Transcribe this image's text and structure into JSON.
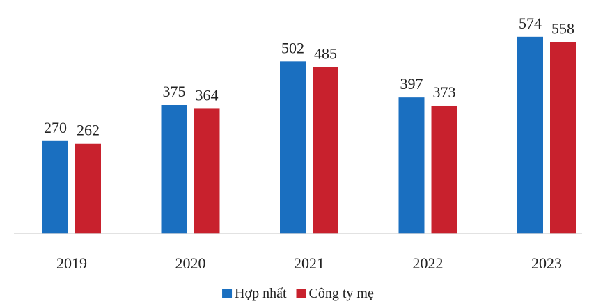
{
  "chart_data": {
    "type": "bar",
    "categories": [
      "2019",
      "2020",
      "2021",
      "2022",
      "2023"
    ],
    "series": [
      {
        "name": "Hợp nhất",
        "color": "#1a6fc0",
        "values": [
          270,
          375,
          502,
          397,
          574
        ]
      },
      {
        "name": "Công ty mẹ",
        "color": "#c8212d",
        "values": [
          262,
          364,
          485,
          373,
          558
        ]
      }
    ],
    "ylim": [
      0,
      600
    ],
    "grid": false,
    "legend": "bottom",
    "data_labels": true
  }
}
